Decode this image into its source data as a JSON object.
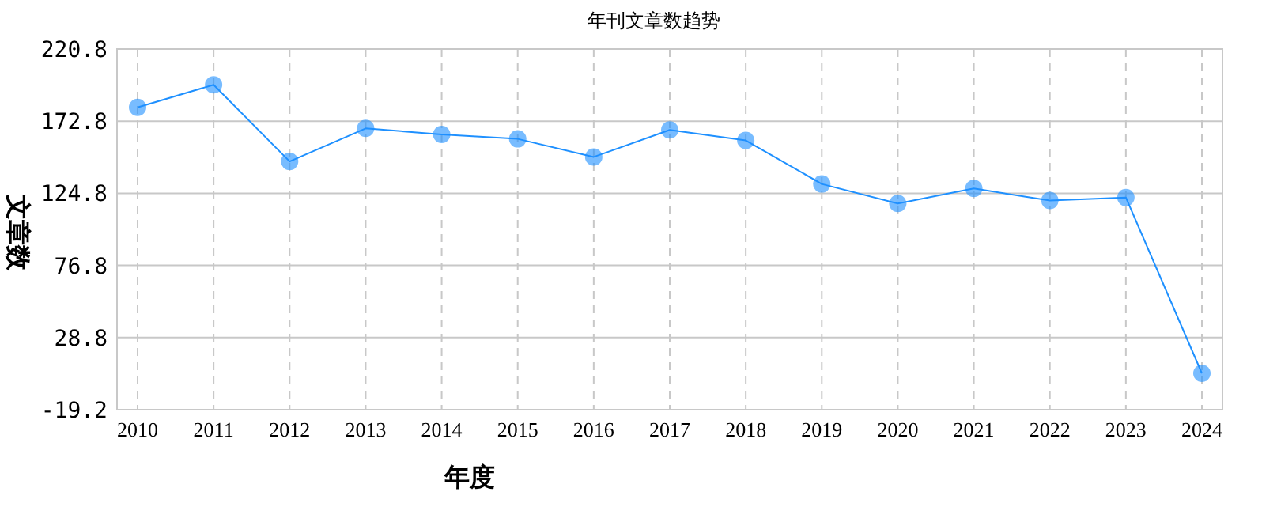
{
  "chart_data": {
    "type": "line",
    "title": "年刊文章数趋势",
    "xlabel": "年度",
    "ylabel": "文章数",
    "categories": [
      "2010",
      "2011",
      "2012",
      "2013",
      "2014",
      "2015",
      "2016",
      "2017",
      "2018",
      "2019",
      "2020",
      "2021",
      "2022",
      "2023",
      "2024"
    ],
    "series": [
      {
        "color": "#1e90ff",
        "values": [
          182,
          197,
          146,
          168,
          164,
          161,
          149,
          167,
          160,
          131,
          118,
          128,
          120,
          122,
          5
        ]
      }
    ],
    "ylim": [
      -19.2,
      220.8
    ],
    "yticks": [
      -19.2,
      28.8,
      76.8,
      124.8,
      172.8,
      220.8
    ],
    "grid": true,
    "marker": "circle"
  }
}
